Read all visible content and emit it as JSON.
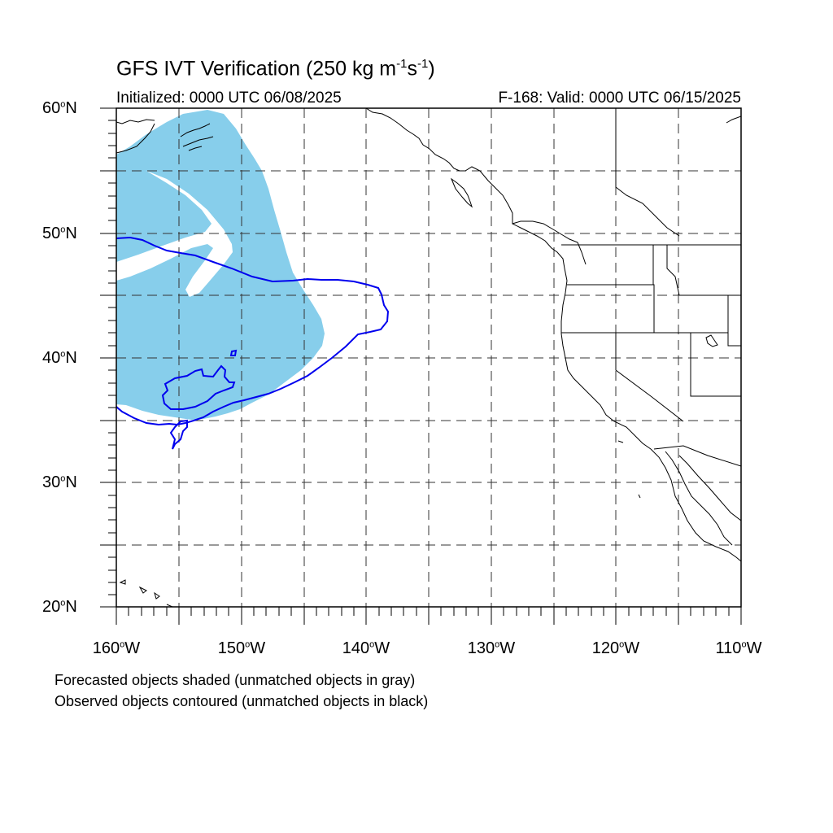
{
  "title": {
    "prefix": "GFS IVT Verification (250 kg m",
    "exp1": "-1",
    "mid": "s",
    "exp2": "-1",
    "suffix": ")"
  },
  "initialized": "Initialized: 0000 UTC 06/08/2025",
  "valid": "F-168: Valid: 0000 UTC 06/15/2025",
  "lat_labels": [
    "60",
    "50",
    "40",
    "30",
    "20"
  ],
  "lon_labels": [
    "160",
    "150",
    "140",
    "130",
    "120",
    "110"
  ],
  "lat_suffix": "N",
  "lon_suffix": "W",
  "notes": {
    "line1": "Forecasted objects shaded (unmatched objects in gray)",
    "line2": "Observed objects contoured (unmatched objects in black)"
  },
  "map_extent": {
    "lon_min": -160,
    "lon_max": -110,
    "lat_min": 20,
    "lat_max": 60
  },
  "colors": {
    "forecast_shading": "#87ceeb",
    "observed_contour": "#0000ee",
    "coastline": "#000000",
    "grid": "#333333"
  }
}
